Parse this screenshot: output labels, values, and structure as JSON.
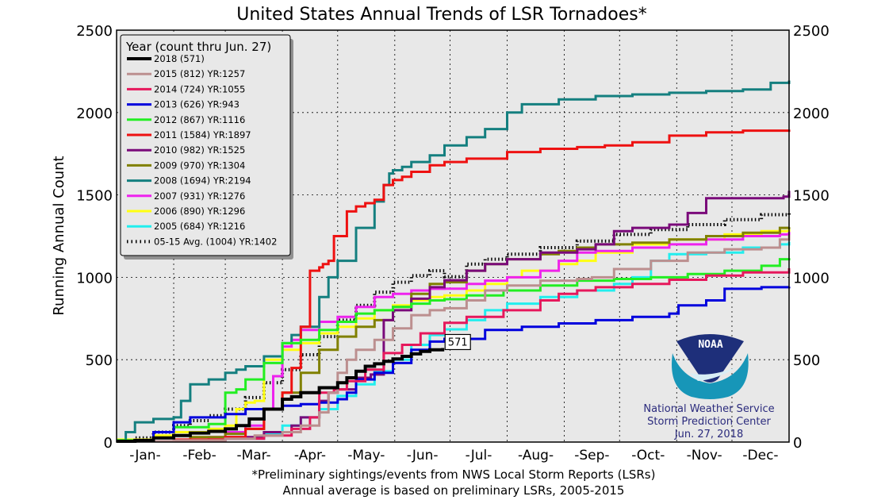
{
  "chart_data": {
    "type": "line",
    "title": "United States Annual Trends of LSR Tornadoes*",
    "xlabel": "",
    "ylabel": "Running Annual Count",
    "ylim": [
      0,
      2500
    ],
    "xlim_days": [
      0,
      365
    ],
    "yticks": [
      "0",
      "500",
      "1000",
      "1500",
      "2000",
      "2500"
    ],
    "ytick_values": [
      0,
      500,
      1000,
      1500,
      2000,
      2500
    ],
    "month_labels": [
      "-Jan-",
      "-Feb-",
      "-Mar-",
      "-Apr-",
      "-May-",
      "-Jun-",
      "-Jul-",
      "-Aug-",
      "-Sep-",
      "-Oct-",
      "-Nov-",
      "-Dec-"
    ],
    "month_start_days": [
      0,
      31,
      59,
      90,
      120,
      151,
      181,
      212,
      243,
      273,
      304,
      334
    ],
    "grid": true,
    "legend": {
      "title": "Year (count thru Jun. 27)",
      "placement": "top-left"
    },
    "x_unit": "day of year",
    "series": [
      {
        "name": "2018 (571)",
        "color": "#000000",
        "width": 4,
        "dash": false,
        "x": [
          0,
          10,
          20,
          31,
          40,
          50,
          59,
          65,
          72,
          80,
          90,
          95,
          100,
          110,
          120,
          125,
          130,
          135,
          140,
          145,
          150,
          155,
          160,
          165,
          170,
          177
        ],
        "y": [
          5,
          10,
          25,
          40,
          55,
          65,
          80,
          100,
          140,
          200,
          260,
          275,
          300,
          330,
          360,
          390,
          430,
          460,
          475,
          490,
          505,
          520,
          535,
          550,
          560,
          571
        ]
      },
      {
        "name": "2015 (812) YR:1257",
        "color": "#bc8f8f",
        "width": 3,
        "dash": false,
        "x": [
          0,
          31,
          59,
          75,
          90,
          100,
          110,
          115,
          120,
          125,
          130,
          140,
          150,
          160,
          170,
          178,
          190,
          200,
          212,
          230,
          250,
          258,
          270,
          290,
          310,
          330,
          350,
          360,
          365
        ],
        "y": [
          5,
          10,
          20,
          40,
          60,
          100,
          180,
          300,
          420,
          500,
          560,
          620,
          690,
          770,
          800,
          812,
          860,
          920,
          950,
          980,
          990,
          1000,
          1050,
          1100,
          1150,
          1170,
          1180,
          1230,
          1257
        ]
      },
      {
        "name": "2014 (724) YR:1055",
        "color": "#e6185c",
        "width": 3,
        "dash": false,
        "x": [
          0,
          31,
          59,
          80,
          95,
          105,
          110,
          118,
          125,
          135,
          145,
          155,
          165,
          178,
          190,
          210,
          230,
          240,
          250,
          260,
          280,
          300,
          320,
          340,
          365
        ],
        "y": [
          5,
          10,
          20,
          40,
          80,
          150,
          300,
          320,
          370,
          440,
          540,
          590,
          660,
          724,
          760,
          800,
          860,
          900,
          920,
          940,
          960,
          985,
          1010,
          1030,
          1055
        ]
      },
      {
        "name": "2013 (626) YR:943",
        "color": "#0000dd",
        "width": 3,
        "dash": false,
        "x": [
          0,
          20,
          31,
          40,
          59,
          70,
          90,
          100,
          110,
          120,
          125,
          130,
          140,
          150,
          160,
          170,
          178,
          200,
          220,
          240,
          260,
          280,
          300,
          305,
          320,
          330,
          350,
          365
        ],
        "y": [
          5,
          60,
          120,
          150,
          170,
          200,
          220,
          230,
          240,
          260,
          300,
          380,
          420,
          480,
          560,
          610,
          626,
          680,
          700,
          720,
          740,
          760,
          780,
          830,
          860,
          930,
          940,
          943
        ]
      },
      {
        "name": "2012 (867) YR:1116",
        "color": "#22ee22",
        "width": 3,
        "dash": false,
        "x": [
          0,
          20,
          31,
          50,
          59,
          65,
          70,
          80,
          90,
          100,
          110,
          120,
          130,
          140,
          150,
          160,
          170,
          178,
          190,
          210,
          230,
          250,
          270,
          290,
          310,
          330,
          350,
          360,
          365
        ],
        "y": [
          10,
          60,
          90,
          110,
          300,
          320,
          380,
          480,
          600,
          620,
          680,
          730,
          780,
          800,
          820,
          840,
          860,
          867,
          890,
          920,
          950,
          980,
          990,
          1000,
          1020,
          1040,
          1070,
          1110,
          1116
        ]
      },
      {
        "name": "2011 (1584) YR:1897",
        "color": "#ee1111",
        "width": 3,
        "dash": false,
        "x": [
          0,
          31,
          59,
          70,
          80,
          90,
          95,
          100,
          105,
          110,
          112,
          115,
          118,
          125,
          130,
          135,
          140,
          145,
          150,
          155,
          160,
          170,
          178,
          190,
          212,
          230,
          250,
          265,
          280,
          300,
          320,
          340,
          365
        ],
        "y": [
          5,
          15,
          30,
          80,
          200,
          300,
          450,
          700,
          1040,
          1060,
          1080,
          1100,
          1250,
          1400,
          1430,
          1450,
          1470,
          1560,
          1590,
          1610,
          1640,
          1680,
          1700,
          1720,
          1760,
          1780,
          1790,
          1800,
          1820,
          1860,
          1880,
          1890,
          1897
        ]
      },
      {
        "name": "2010 (982) YR:1525",
        "color": "#7a0a7a",
        "width": 3,
        "dash": false,
        "x": [
          0,
          31,
          59,
          80,
          95,
          100,
          110,
          115,
          120,
          130,
          138,
          145,
          150,
          160,
          170,
          178,
          190,
          200,
          212,
          230,
          250,
          260,
          270,
          280,
          300,
          310,
          320,
          340,
          362,
          365
        ],
        "y": [
          5,
          10,
          30,
          60,
          100,
          150,
          250,
          300,
          320,
          390,
          410,
          740,
          800,
          870,
          940,
          982,
          1040,
          1080,
          1110,
          1150,
          1170,
          1200,
          1280,
          1300,
          1320,
          1390,
          1480,
          1480,
          1490,
          1525
        ]
      },
      {
        "name": "2009 (970) YR:1304",
        "color": "#808000",
        "width": 3,
        "dash": false,
        "x": [
          0,
          31,
          40,
          59,
          70,
          80,
          90,
          100,
          110,
          120,
          130,
          140,
          150,
          160,
          170,
          178,
          190,
          200,
          212,
          230,
          240,
          250,
          260,
          280,
          300,
          320,
          340,
          360,
          365
        ],
        "y": [
          5,
          10,
          30,
          50,
          80,
          200,
          300,
          420,
          560,
          640,
          700,
          740,
          820,
          900,
          960,
          970,
          1040,
          1080,
          1110,
          1140,
          1160,
          1180,
          1200,
          1210,
          1230,
          1250,
          1270,
          1300,
          1304
        ]
      },
      {
        "name": "2008 (1694) YR:2194",
        "color": "#147f7f",
        "width": 3,
        "dash": false,
        "x": [
          0,
          5,
          10,
          20,
          31,
          35,
          40,
          50,
          59,
          65,
          70,
          80,
          90,
          95,
          100,
          110,
          115,
          120,
          130,
          140,
          145,
          148,
          150,
          155,
          160,
          170,
          178,
          190,
          200,
          212,
          220,
          240,
          260,
          280,
          300,
          320,
          340,
          355,
          365
        ],
        "y": [
          10,
          60,
          120,
          140,
          150,
          250,
          350,
          380,
          420,
          440,
          460,
          520,
          600,
          650,
          700,
          880,
          1000,
          1100,
          1300,
          1460,
          1560,
          1630,
          1650,
          1670,
          1700,
          1740,
          1800,
          1850,
          1900,
          2000,
          2050,
          2080,
          2100,
          2110,
          2120,
          2130,
          2140,
          2180,
          2194
        ]
      },
      {
        "name": "2007 (931) YR:1276",
        "color": "#ee22ee",
        "width": 3,
        "dash": false,
        "x": [
          0,
          31,
          50,
          59,
          70,
          80,
          85,
          90,
          95,
          100,
          110,
          120,
          130,
          140,
          150,
          160,
          170,
          178,
          190,
          200,
          212,
          230,
          240,
          250,
          260,
          280,
          300,
          320,
          340,
          360,
          365
        ],
        "y": [
          5,
          10,
          30,
          60,
          100,
          200,
          400,
          580,
          620,
          680,
          730,
          760,
          820,
          880,
          900,
          920,
          930,
          931,
          960,
          980,
          1000,
          1040,
          1100,
          1150,
          1160,
          1180,
          1200,
          1230,
          1250,
          1260,
          1276
        ]
      },
      {
        "name": "2006 (890) YR:1296",
        "color": "#ffff11",
        "width": 3,
        "dash": false,
        "x": [
          0,
          20,
          31,
          50,
          59,
          65,
          70,
          75,
          80,
          90,
          100,
          110,
          120,
          130,
          140,
          150,
          160,
          170,
          178,
          190,
          200,
          212,
          220,
          240,
          250,
          260,
          280,
          300,
          330,
          350,
          365
        ],
        "y": [
          15,
          40,
          60,
          80,
          100,
          200,
          240,
          250,
          500,
          560,
          600,
          660,
          700,
          750,
          800,
          830,
          860,
          880,
          890,
          920,
          960,
          1000,
          1040,
          1080,
          1100,
          1150,
          1200,
          1230,
          1260,
          1280,
          1296
        ]
      },
      {
        "name": "2005 (684) YR:1216",
        "color": "#22eeee",
        "width": 3,
        "dash": false,
        "x": [
          0,
          31,
          59,
          80,
          90,
          100,
          110,
          120,
          130,
          140,
          150,
          160,
          170,
          178,
          190,
          200,
          212,
          230,
          250,
          270,
          280,
          290,
          300,
          320,
          340,
          360,
          365
        ],
        "y": [
          5,
          10,
          20,
          50,
          100,
          150,
          200,
          280,
          350,
          430,
          500,
          590,
          650,
          684,
          740,
          800,
          840,
          880,
          920,
          960,
          1000,
          1100,
          1140,
          1150,
          1180,
          1200,
          1216
        ]
      },
      {
        "name": "05-15 Avg. (1004) YR:1402",
        "color": "#000000",
        "width": 2.5,
        "dash": true,
        "x": [
          0,
          10,
          20,
          31,
          40,
          50,
          59,
          70,
          80,
          90,
          100,
          110,
          120,
          130,
          140,
          150,
          160,
          170,
          178,
          190,
          200,
          212,
          230,
          250,
          270,
          290,
          310,
          330,
          350,
          365
        ],
        "y": [
          10,
          25,
          60,
          100,
          130,
          160,
          200,
          270,
          360,
          440,
          530,
          640,
          740,
          830,
          910,
          970,
          1010,
          1040,
          1004,
          1080,
          1110,
          1140,
          1180,
          1220,
          1260,
          1290,
          1320,
          1350,
          1380,
          1402
        ]
      }
    ],
    "annotation": {
      "label": "571",
      "x_day": 177,
      "y": 571
    }
  },
  "footnotes": [
    "*Preliminary sightings/events from NWS Local Storm Reports (LSRs)",
    "Annual average is based on preliminary LSRs, 2005-2015"
  ],
  "branding": {
    "logo_text": "NOAA",
    "lines": [
      "National Weather Service",
      "Storm Prediction Center",
      "Jun. 27, 2018"
    ]
  }
}
